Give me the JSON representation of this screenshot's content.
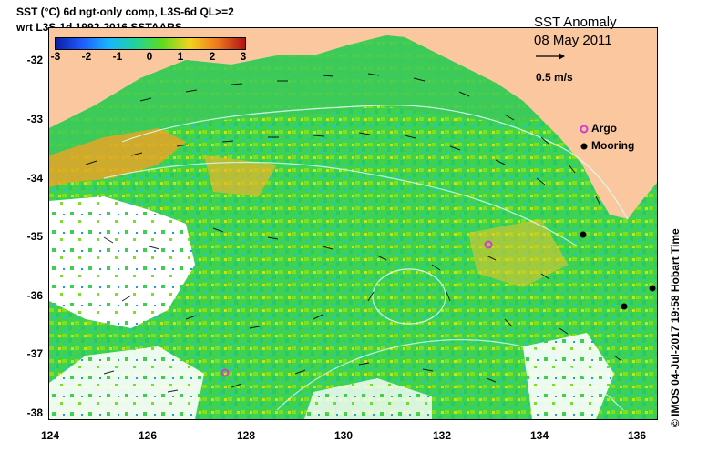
{
  "header": {
    "line1": "SST (°C) 6d ngt-only comp, L3S-6d QL>=2",
    "line2": "wrt L3S-1d 1992-2016 SSTAARS"
  },
  "map_overlay": {
    "title": "SST Anomaly",
    "date": "08 May 2011",
    "vector_scale": "0.5 m/s",
    "legend": [
      {
        "label": "Argo",
        "color": "#d13bd1"
      },
      {
        "label": "Mooring",
        "color": "#000000"
      }
    ]
  },
  "colorbar": {
    "ticks": [
      "-3",
      "-2",
      "-1",
      "0",
      "1",
      "2",
      "3"
    ],
    "colors": [
      "#0b1fa3",
      "#1e5cff",
      "#1ab5ff",
      "#21d39b",
      "#5ddb1f",
      "#f3d31f",
      "#ee7b1e",
      "#b11313"
    ]
  },
  "axes": {
    "y_ticks": [
      "-32",
      "-33",
      "-34",
      "-35",
      "-36",
      "-37",
      "-38"
    ],
    "x_ticks": [
      "124",
      "126",
      "128",
      "130",
      "132",
      "134",
      "136"
    ]
  },
  "footer": "© IMOS 04-Jul-2017 19:58 Hobart Time"
}
